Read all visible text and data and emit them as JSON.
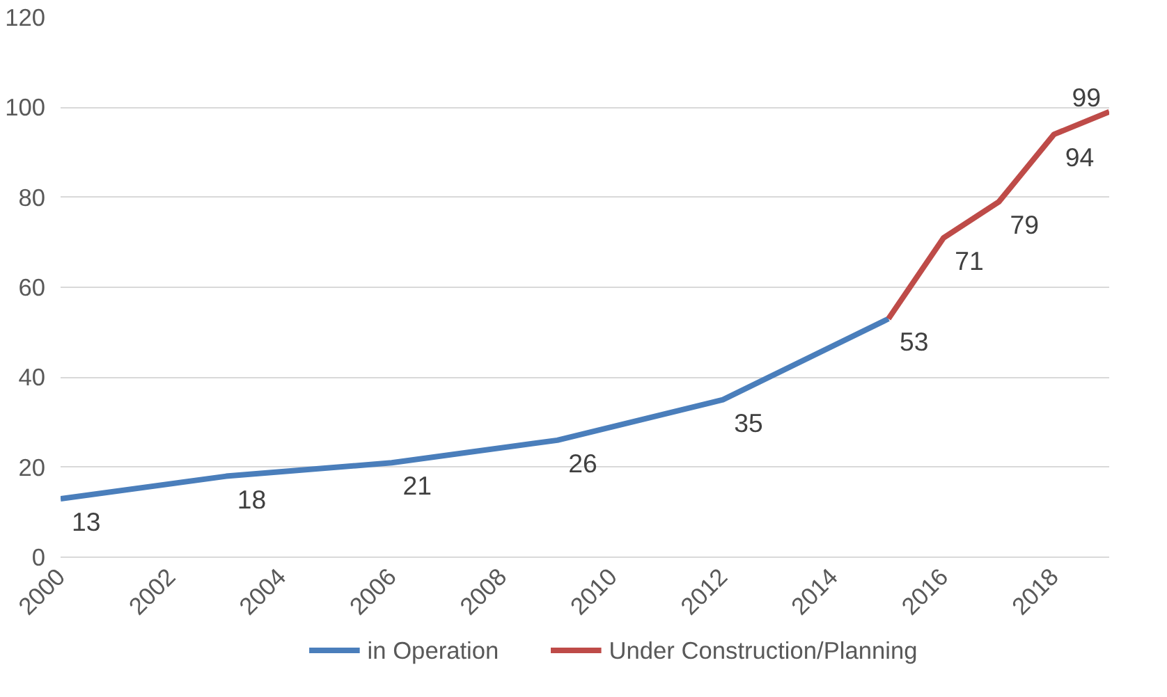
{
  "chart_data": {
    "type": "line",
    "xlim": [
      2000,
      2019
    ],
    "xticks": [
      2000,
      2002,
      2004,
      2006,
      2008,
      2010,
      2012,
      2014,
      2016,
      2018
    ],
    "ylim": [
      0,
      120
    ],
    "yticks": [
      0,
      20,
      40,
      60,
      80,
      100,
      120
    ],
    "grid": "y",
    "legend": "bottom",
    "line_style": "solid",
    "marker": "none",
    "series": [
      {
        "name": "in Operation",
        "color": "#4a7ebb",
        "x": [
          2000,
          2003,
          2006,
          2009,
          2012,
          2015
        ],
        "values": [
          13,
          18,
          21,
          26,
          35,
          53
        ],
        "value_labels": [
          "13",
          "18",
          "21",
          "26",
          "35",
          "53"
        ]
      },
      {
        "name": "Under Construction/Planning",
        "color": "#be4b48",
        "x": [
          2015,
          2016,
          2017,
          2018,
          2019
        ],
        "values": [
          53,
          71,
          79,
          94,
          99
        ],
        "value_labels": [
          null,
          "71",
          "79",
          "94",
          "99"
        ]
      }
    ]
  }
}
